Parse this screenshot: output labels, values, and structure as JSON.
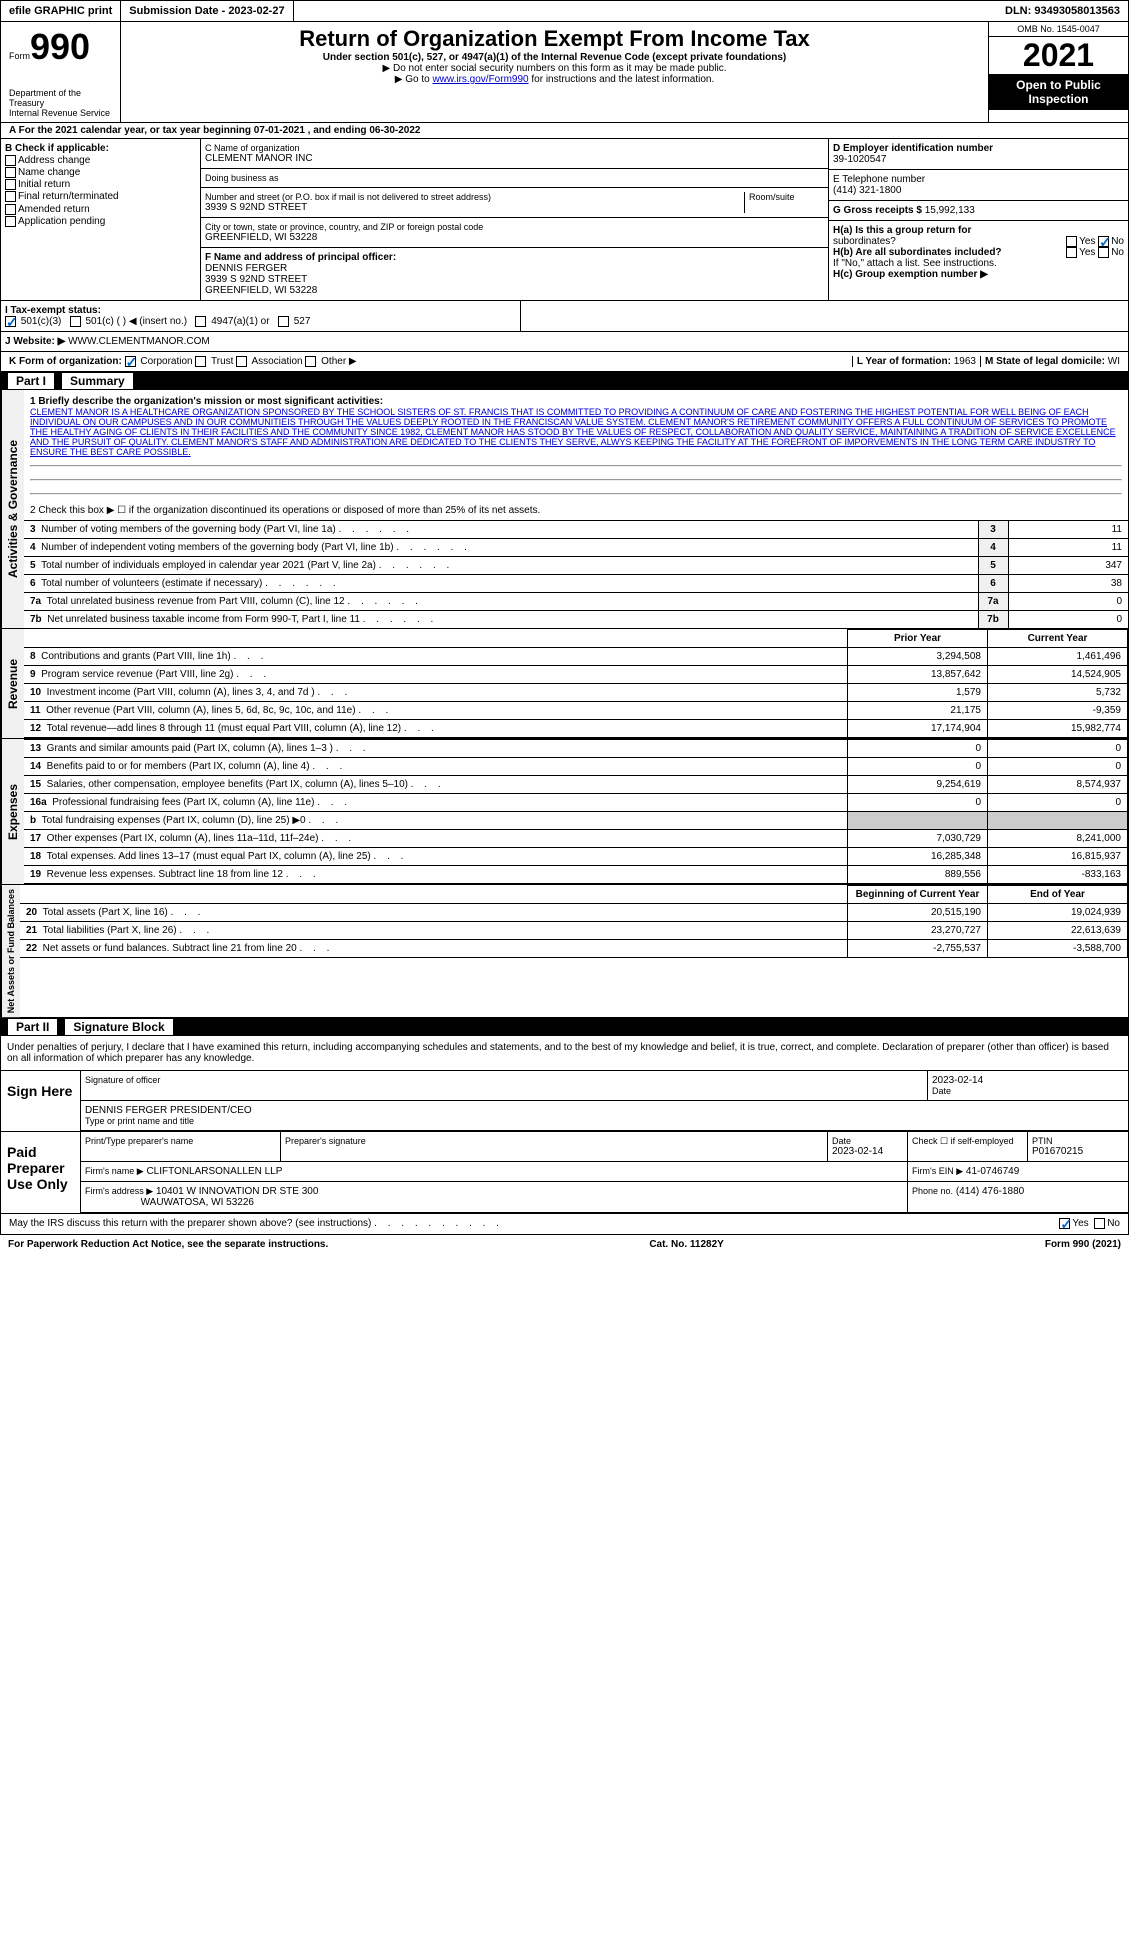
{
  "top": {
    "efile": "efile GRAPHIC print",
    "submission": "Submission Date - 2023-02-27",
    "dln": "DLN: 93493058013563"
  },
  "header": {
    "form_label": "Form",
    "form_num": "990",
    "dept": "Department of the Treasury",
    "irs": "Internal Revenue Service",
    "title": "Return of Organization Exempt From Income Tax",
    "subtitle": "Under section 501(c), 527, or 4947(a)(1) of the Internal Revenue Code (except private foundations)",
    "instr1": "▶ Do not enter social security numbers on this form as it may be made public.",
    "instr2_pre": "▶ Go to ",
    "instr2_link": "www.irs.gov/Form990",
    "instr2_post": " for instructions and the latest information.",
    "omb": "OMB No. 1545-0047",
    "year": "2021",
    "open": "Open to Public Inspection"
  },
  "section_a": "A For the 2021 calendar year, or tax year beginning 07-01-2021   , and ending 06-30-2022",
  "box_b": {
    "label": "B Check if applicable:",
    "items": [
      "Address change",
      "Name change",
      "Initial return",
      "Final return/terminated",
      "Amended return",
      "Application pending"
    ]
  },
  "box_c": {
    "name_label": "C Name of organization",
    "name": "CLEMENT MANOR INC",
    "dba_label": "Doing business as",
    "dba": "",
    "addr_label": "Number and street (or P.O. box if mail is not delivered to street address)",
    "room_label": "Room/suite",
    "addr": "3939 S 92ND STREET",
    "city_label": "City or town, state or province, country, and ZIP or foreign postal code",
    "city": "GREENFIELD, WI  53228"
  },
  "box_d": {
    "label": "D Employer identification number",
    "value": "39-1020547"
  },
  "box_e": {
    "label": "E Telephone number",
    "value": "(414) 321-1800"
  },
  "box_g": {
    "label": "G Gross receipts $",
    "value": "15,992,133"
  },
  "box_f": {
    "label": "F  Name and address of principal officer:",
    "name": "DENNIS FERGER",
    "addr1": "3939 S 92ND STREET",
    "addr2": "GREENFIELD, WI  53228"
  },
  "box_h": {
    "a_label": "H(a)  Is this a group return for",
    "a_sub": "subordinates?",
    "b_label": "H(b)  Are all subordinates included?",
    "b_note": "If \"No,\" attach a list. See instructions.",
    "c_label": "H(c)  Group exemption number ▶"
  },
  "box_i": {
    "label": "I   Tax-exempt status:",
    "opts": [
      "501(c)(3)",
      "501(c) (  ) ◀ (insert no.)",
      "4947(a)(1) or",
      "527"
    ]
  },
  "box_j": {
    "label": "J  Website: ▶",
    "value": "WWW.CLEMENTMANOR.COM"
  },
  "box_k": {
    "label": "K Form of organization:",
    "opts": [
      "Corporation",
      "Trust",
      "Association",
      "Other ▶"
    ]
  },
  "box_l": {
    "label": "L Year of formation:",
    "value": "1963"
  },
  "box_m": {
    "label": "M State of legal domicile:",
    "value": "WI"
  },
  "part1": {
    "label": "Part I",
    "title": "Summary"
  },
  "mission": {
    "label": "1   Briefly describe the organization's mission or most significant activities:",
    "text": "CLEMENT MANOR IS A HEALTHCARE ORGANIZATION SPONSORED BY THE SCHOOL SISTERS OF ST. FRANCIS THAT IS COMMITTED TO PROVIDING A CONTINUUM OF CARE AND FOSTERING THE HIGHEST POTENTIAL FOR WELL BEING OF EACH INDIVIDUAL ON OUR CAMPUSES AND IN OUR COMMUNITIEIS THROUGH THE VALUES DEEPLY ROOTED IN THE FRANCISCAN VALUE SYSTEM. CLEMENT MANOR'S RETIREMENT COMMUNITY OFFERS A FULL CONTINUUM OF SERVICES TO PROMOTE THE HEALTHY AGING OF CLIENTS IN THEIR FACILITIES AND THE COMMUNITY SINCE 1982, CLEMENT MANOR HAS STOOD BY THE VALUES OF RESPECT, COLLABORATION AND QUALITY SERVICE, MAINTAINING A TRADITION OF SERVICE EXCELLENCE AND THE PURSUIT OF QUALITY. CLEMENT MANOR'S STAFF AND ADMINISTRATION ARE DEDICATED TO THE CLIENTS THEY SERVE, ALWYS KEEPING THE FACILITY AT THE FOREFRONT OF IMPORVEMENTS IN THE LONG TERM CARE INDUSTRY TO ENSURE THE BEST CARE POSSIBLE."
  },
  "line2": "2    Check this box ▶ ☐ if the organization discontinued its operations or disposed of more than 25% of its net assets.",
  "gov_lines": [
    {
      "n": "3",
      "label": "Number of voting members of the governing body (Part VI, line 1a)",
      "val": "11"
    },
    {
      "n": "4",
      "label": "Number of independent voting members of the governing body (Part VI, line 1b)",
      "val": "11"
    },
    {
      "n": "5",
      "label": "Total number of individuals employed in calendar year 2021 (Part V, line 2a)",
      "val": "347"
    },
    {
      "n": "6",
      "label": "Total number of volunteers (estimate if necessary)",
      "val": "38"
    },
    {
      "n": "7a",
      "label": "Total unrelated business revenue from Part VIII, column (C), line 12",
      "val": "0"
    },
    {
      "n": "7b",
      "label": "Net unrelated business taxable income from Form 990-T, Part I, line 11",
      "val": "0"
    }
  ],
  "fin_headers": {
    "py": "Prior Year",
    "cy": "Current Year"
  },
  "revenue_lines": [
    {
      "n": "8",
      "label": "Contributions and grants (Part VIII, line 1h)",
      "py": "3,294,508",
      "cy": "1,461,496"
    },
    {
      "n": "9",
      "label": "Program service revenue (Part VIII, line 2g)",
      "py": "13,857,642",
      "cy": "14,524,905"
    },
    {
      "n": "10",
      "label": "Investment income (Part VIII, column (A), lines 3, 4, and 7d )",
      "py": "1,579",
      "cy": "5,732"
    },
    {
      "n": "11",
      "label": "Other revenue (Part VIII, column (A), lines 5, 6d, 8c, 9c, 10c, and 11e)",
      "py": "21,175",
      "cy": "-9,359"
    },
    {
      "n": "12",
      "label": "Total revenue—add lines 8 through 11 (must equal Part VIII, column (A), line 12)",
      "py": "17,174,904",
      "cy": "15,982,774"
    }
  ],
  "expense_lines": [
    {
      "n": "13",
      "label": "Grants and similar amounts paid (Part IX, column (A), lines 1–3 )",
      "py": "0",
      "cy": "0"
    },
    {
      "n": "14",
      "label": "Benefits paid to or for members (Part IX, column (A), line 4)",
      "py": "0",
      "cy": "0"
    },
    {
      "n": "15",
      "label": "Salaries, other compensation, employee benefits (Part IX, column (A), lines 5–10)",
      "py": "9,254,619",
      "cy": "8,574,937"
    },
    {
      "n": "16a",
      "label": "Professional fundraising fees (Part IX, column (A), line 11e)",
      "py": "0",
      "cy": "0"
    },
    {
      "n": "b",
      "label": "Total fundraising expenses (Part IX, column (D), line 25) ▶0",
      "py": "",
      "cy": "",
      "shaded": true
    },
    {
      "n": "17",
      "label": "Other expenses (Part IX, column (A), lines 11a–11d, 11f–24e)",
      "py": "7,030,729",
      "cy": "8,241,000"
    },
    {
      "n": "18",
      "label": "Total expenses. Add lines 13–17 (must equal Part IX, column (A), line 25)",
      "py": "16,285,348",
      "cy": "16,815,937"
    },
    {
      "n": "19",
      "label": "Revenue less expenses. Subtract line 18 from line 12",
      "py": "889,556",
      "cy": "-833,163"
    }
  ],
  "na_headers": {
    "py": "Beginning of Current Year",
    "cy": "End of Year"
  },
  "na_lines": [
    {
      "n": "20",
      "label": "Total assets (Part X, line 16)",
      "py": "20,515,190",
      "cy": "19,024,939"
    },
    {
      "n": "21",
      "label": "Total liabilities (Part X, line 26)",
      "py": "23,270,727",
      "cy": "22,613,639"
    },
    {
      "n": "22",
      "label": "Net assets or fund balances. Subtract line 21 from line 20",
      "py": "-2,755,537",
      "cy": "-3,588,700"
    }
  ],
  "vert_labels": {
    "ag": "Activities & Governance",
    "rev": "Revenue",
    "exp": "Expenses",
    "na": "Net Assets or Fund Balances"
  },
  "part2": {
    "label": "Part II",
    "title": "Signature Block"
  },
  "sig_decl": "Under penalties of perjury, I declare that I have examined this return, including accompanying schedules and statements, and to the best of my knowledge and belief, it is true, correct, and complete. Declaration of preparer (other than officer) is based on all information of which preparer has any knowledge.",
  "sign_here": {
    "label": "Sign Here",
    "sig_label": "Signature of officer",
    "date": "2023-02-14",
    "date_label": "Date",
    "name": "DENNIS FERGER  PRESIDENT/CEO",
    "name_label": "Type or print name and title"
  },
  "preparer": {
    "label": "Paid Preparer Use Only",
    "print_label": "Print/Type preparer's name",
    "sig_label": "Preparer's signature",
    "date_label": "Date",
    "date": "2023-02-14",
    "self_label": "Check ☐ if self-employed",
    "ptin_label": "PTIN",
    "ptin": "P01670215",
    "firm_name_label": "Firm's name    ▶",
    "firm_name": "CLIFTONLARSONALLEN LLP",
    "firm_ein_label": "Firm's EIN ▶",
    "firm_ein": "41-0746749",
    "firm_addr_label": "Firm's address ▶",
    "firm_addr1": "10401 W INNOVATION DR STE 300",
    "firm_addr2": "WAUWATOSA, WI  53226",
    "phone_label": "Phone no.",
    "phone": "(414) 476-1880"
  },
  "discuss": "May the IRS discuss this return with the preparer shown above? (see instructions)",
  "footer": {
    "pra": "For Paperwork Reduction Act Notice, see the separate instructions.",
    "cat": "Cat. No. 11282Y",
    "form": "Form 990 (2021)"
  }
}
